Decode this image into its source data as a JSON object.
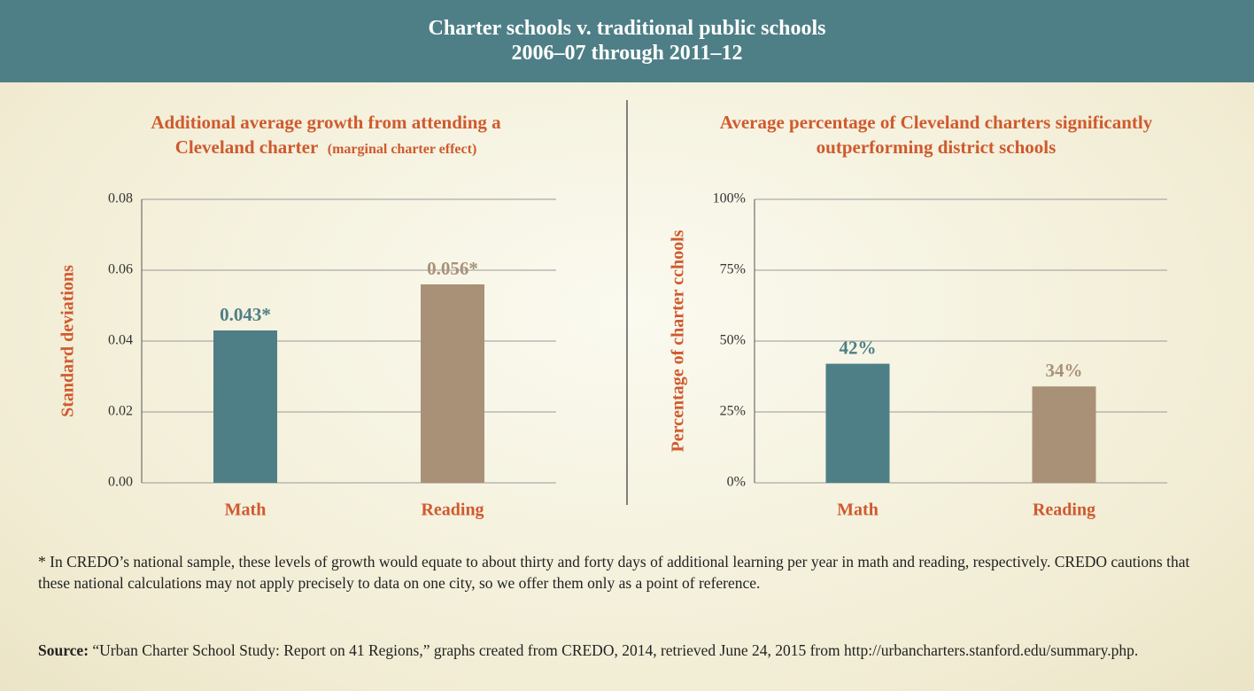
{
  "header": {
    "title": "Charter schools v. traditional public schools",
    "subtitle": "2006–07 through 2011–12"
  },
  "chart_data": [
    {
      "type": "bar",
      "title": "Additional average growth from attending a Cleveland charter",
      "title_note": "(marginal charter effect)",
      "y_label": "Standard deviations",
      "categories": [
        "Math",
        "Reading"
      ],
      "values": [
        0.043,
        0.056
      ],
      "value_labels": [
        "0.043*",
        "0.056*"
      ],
      "colors": [
        "#4e7f86",
        "#a99178"
      ],
      "ylim": [
        0,
        0.08
      ],
      "yticks": [
        {
          "value": 0,
          "label": "0.00"
        },
        0.02,
        0.04,
        0.06,
        0.08
      ],
      "grid": true
    },
    {
      "type": "bar",
      "title": "Average percentage of Cleveland charters significantly outperforming district schools",
      "y_label": "Percentage of charter cchools",
      "categories": [
        "Math",
        "Reading"
      ],
      "values": [
        42,
        34
      ],
      "value_labels": [
        "42%",
        "34%"
      ],
      "colors": [
        "#4e7f86",
        "#a99178"
      ],
      "ylim": [
        0,
        100
      ],
      "yticks": [
        {
          "value": 0,
          "label": "0%"
        },
        {
          "value": 25,
          "label": "25%"
        },
        {
          "value": 50,
          "label": "50%"
        },
        {
          "value": 75,
          "label": "75%"
        },
        {
          "value": 100,
          "label": "100%"
        }
      ],
      "grid": true
    }
  ],
  "footnote": "* In CREDO’s national sample, these levels of growth would equate to about thirty and forty days of additional learning per year in math and reading, respectively. CREDO cautions that these national calculations may not apply precisely to data on one city, so we offer them only as a point of reference.",
  "source": {
    "label": "Source:",
    "text": "“Urban Charter School Study: Report on 41 Regions,” graphs created from CREDO, 2014, retrieved June 24, 2015 from http://urbancharters.stanford.edu/summary.php."
  }
}
